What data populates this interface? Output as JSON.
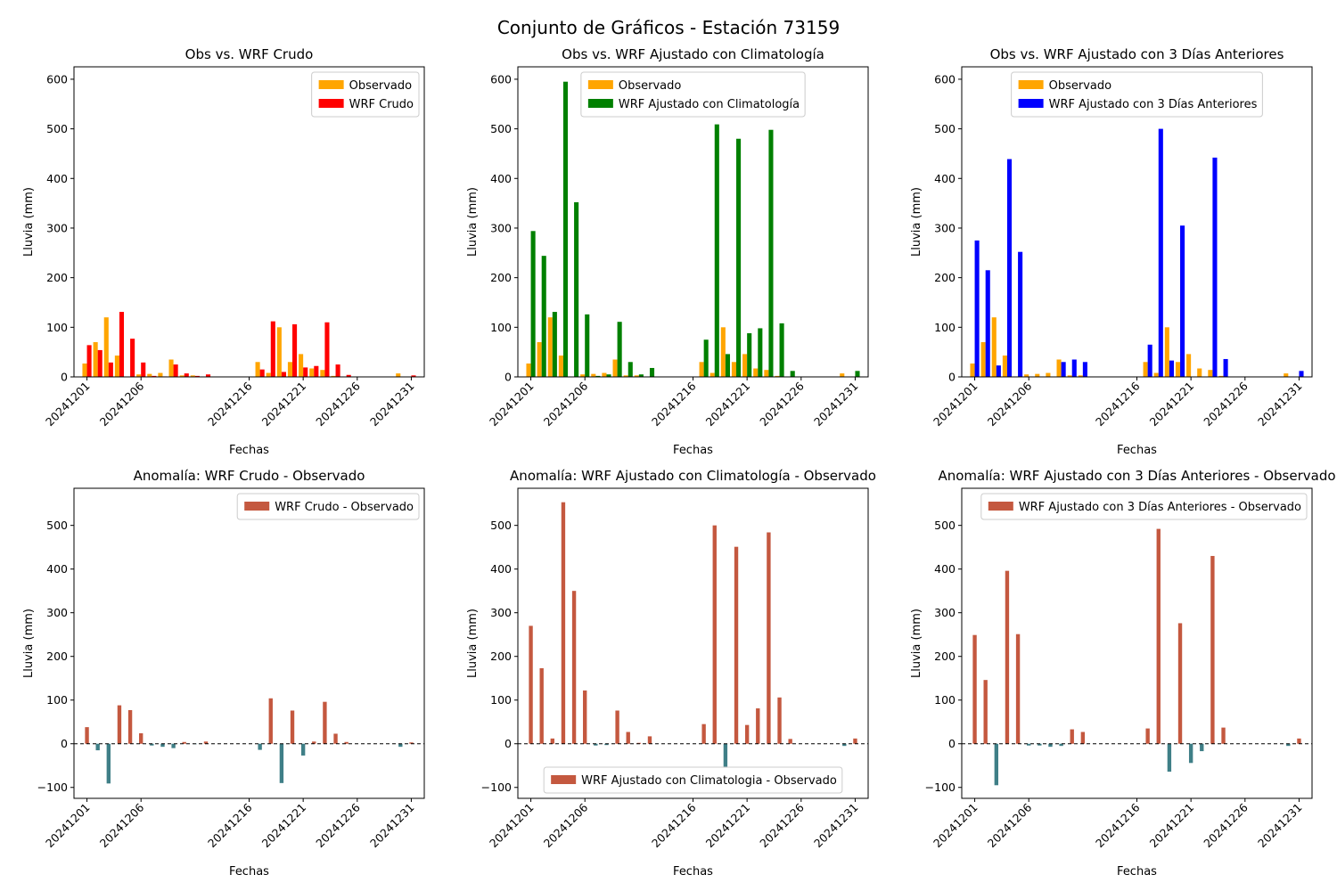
{
  "figure": {
    "title": "Conjunto de Gráficos - Estación 73159"
  },
  "colors": {
    "observado": "#FFA500",
    "crudo": "#FF0000",
    "clim": "#008000",
    "tres": "#0000FF",
    "anom_pos": "#C4583F",
    "anom_neg": "#3F7F87"
  },
  "chart_data": [
    {
      "type": "bar",
      "title": "Obs vs. WRF Crudo",
      "xlabel": "Fechas",
      "ylabel": "Lluvia (mm)",
      "xticks": [
        "20241201",
        "20241206",
        "20241216",
        "20241221",
        "20241226",
        "20241231"
      ],
      "yticks": [
        0,
        100,
        200,
        300,
        400,
        500,
        600
      ],
      "ylim": [
        0,
        625
      ],
      "legend": "top-right",
      "series": [
        {
          "name": "Observado",
          "color_key": "observado",
          "values": [
            27,
            70,
            120,
            43,
            0,
            5,
            6,
            8,
            35,
            3,
            3,
            0,
            0,
            0,
            0,
            0,
            30,
            8,
            100,
            30,
            46,
            17,
            14,
            2,
            0,
            0,
            0,
            0,
            0,
            7,
            0
          ]
        },
        {
          "name": "WRF Crudo",
          "color_key": "crudo",
          "values": [
            64,
            54,
            29,
            131,
            77,
            29,
            2,
            1,
            25,
            7,
            2,
            5,
            0,
            0,
            0,
            0,
            15,
            112,
            10,
            106,
            19,
            22,
            110,
            25,
            4,
            0,
            0,
            0,
            0,
            0,
            3
          ]
        }
      ]
    },
    {
      "type": "bar",
      "title": "Obs vs. WRF Ajustado con Climatología",
      "xlabel": "Fechas",
      "ylabel": "Lluvia (mm)",
      "xticks": [
        "20241201",
        "20241206",
        "20241216",
        "20241221",
        "20241226",
        "20241231"
      ],
      "yticks": [
        0,
        100,
        200,
        300,
        400,
        500,
        600
      ],
      "ylim": [
        0,
        625
      ],
      "legend": "top-center",
      "series": [
        {
          "name": "Observado",
          "color_key": "observado",
          "values": [
            27,
            70,
            120,
            43,
            0,
            5,
            6,
            8,
            35,
            3,
            3,
            0,
            0,
            0,
            0,
            0,
            30,
            8,
            100,
            30,
            46,
            17,
            14,
            2,
            0,
            0,
            0,
            0,
            0,
            7,
            0
          ]
        },
        {
          "name": "WRF Ajustado con Climatología",
          "color_key": "clim",
          "values": [
            294,
            244,
            131,
            595,
            352,
            126,
            2,
            5,
            111,
            30,
            5,
            18,
            0,
            0,
            0,
            0,
            75,
            509,
            46,
            480,
            88,
            98,
            498,
            108,
            12,
            0,
            0,
            0,
            0,
            0,
            12
          ]
        }
      ]
    },
    {
      "type": "bar",
      "title": "Obs vs. WRF Ajustado con 3 Días Anteriores",
      "xlabel": "Fechas",
      "ylabel": "Lluvia (mm)",
      "xticks": [
        "20241201",
        "20241206",
        "20241216",
        "20241221",
        "20241226",
        "20241231"
      ],
      "yticks": [
        0,
        100,
        200,
        300,
        400,
        500,
        600
      ],
      "ylim": [
        0,
        625
      ],
      "legend": "top-center",
      "series": [
        {
          "name": "Observado",
          "color_key": "observado",
          "values": [
            27,
            70,
            120,
            43,
            0,
            5,
            6,
            8,
            35,
            3,
            3,
            0,
            0,
            0,
            0,
            0,
            30,
            8,
            100,
            30,
            46,
            17,
            14,
            2,
            0,
            0,
            0,
            0,
            0,
            7,
            0
          ]
        },
        {
          "name": "WRF Ajustado con 3 Días Anteriores",
          "color_key": "tres",
          "values": [
            275,
            215,
            23,
            439,
            252,
            0,
            0,
            0,
            30,
            35,
            30,
            0,
            0,
            0,
            0,
            0,
            65,
            500,
            33,
            305,
            0,
            0,
            442,
            36,
            0,
            0,
            0,
            0,
            0,
            0,
            12
          ]
        }
      ]
    },
    {
      "type": "bar",
      "title": "Anomalía: WRF Crudo - Observado",
      "xlabel": "Fechas",
      "ylabel": "Lluvia (mm)",
      "xticks": [
        "20241201",
        "20241206",
        "20241216",
        "20241221",
        "20241226",
        "20241231"
      ],
      "yticks": [
        -100,
        0,
        100,
        200,
        300,
        400,
        500
      ],
      "ylim": [
        -125,
        585
      ],
      "legend": "top-right",
      "zero_line": true,
      "series": [
        {
          "name": "WRF Crudo - Observado",
          "color_key": "anom_pos",
          "neg_color_key": "anom_neg",
          "values": [
            38,
            -15,
            -91,
            88,
            77,
            24,
            -4,
            -7,
            -10,
            4,
            -1,
            5,
            0,
            0,
            0,
            0,
            -14,
            104,
            -90,
            76,
            -27,
            5,
            96,
            23,
            4,
            0,
            0,
            0,
            0,
            -7,
            3
          ]
        }
      ]
    },
    {
      "type": "bar",
      "title": "Anomalía: WRF Ajustado con Climatología - Observado",
      "xlabel": "Fechas",
      "ylabel": "Lluvia (mm)",
      "xticks": [
        "20241201",
        "20241206",
        "20241216",
        "20241221",
        "20241226",
        "20241231"
      ],
      "yticks": [
        -100,
        0,
        100,
        200,
        300,
        400,
        500
      ],
      "ylim": [
        -125,
        585
      ],
      "legend": "bottom-center",
      "zero_line": true,
      "series": [
        {
          "name": "WRF Ajustado con Climatologia - Observado",
          "color_key": "anom_pos",
          "neg_color_key": "anom_neg",
          "values": [
            270,
            173,
            12,
            553,
            350,
            122,
            -4,
            -3,
            76,
            27,
            2,
            17,
            0,
            0,
            0,
            0,
            45,
            500,
            -55,
            451,
            43,
            81,
            484,
            106,
            11,
            0,
            0,
            0,
            0,
            -5,
            12
          ]
        }
      ]
    },
    {
      "type": "bar",
      "title": "Anomalía: WRF Ajustado con 3 Días Anteriores - Observado",
      "xlabel": "Fechas",
      "ylabel": "Lluvia (mm)",
      "xticks": [
        "20241201",
        "20241206",
        "20241216",
        "20241221",
        "20241226",
        "20241231"
      ],
      "yticks": [
        -100,
        0,
        100,
        200,
        300,
        400,
        500
      ],
      "ylim": [
        -125,
        585
      ],
      "legend": "top-right",
      "zero_line": true,
      "series": [
        {
          "name": "WRF Ajustado con 3 Días Anteriores - Observado",
          "color_key": "anom_pos",
          "neg_color_key": "anom_neg",
          "values": [
            249,
            146,
            -95,
            396,
            251,
            -4,
            -4,
            -7,
            -5,
            33,
            27,
            0,
            0,
            0,
            0,
            0,
            35,
            492,
            -64,
            276,
            -44,
            -17,
            430,
            37,
            0,
            0,
            0,
            0,
            0,
            -5,
            12
          ]
        }
      ]
    }
  ]
}
